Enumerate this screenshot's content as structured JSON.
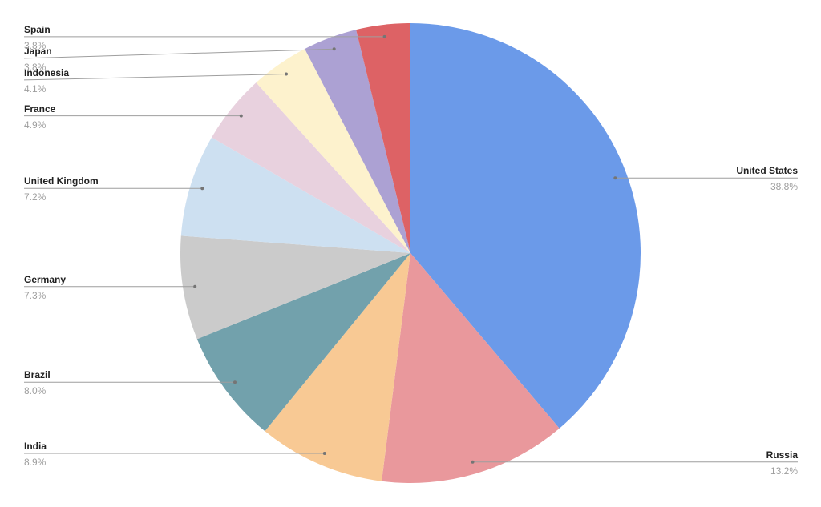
{
  "chart_data": {
    "type": "pie",
    "title": "",
    "start_at_top": true,
    "direction": "clockwise",
    "labels_position": "callout",
    "background": "#ffffff",
    "slices": [
      {
        "label": "United States",
        "pct": "38.8%",
        "value": 38.8,
        "color": "#6b9ae9"
      },
      {
        "label": "Russia",
        "pct": "13.2%",
        "value": 13.2,
        "color": "#e9989c"
      },
      {
        "label": "India",
        "pct": "8.9%",
        "value": 8.9,
        "color": "#f8c994"
      },
      {
        "label": "Brazil",
        "pct": "8.0%",
        "value": 8.0,
        "color": "#72a1ac"
      },
      {
        "label": "Germany",
        "pct": "7.3%",
        "value": 7.3,
        "color": "#cbcbcb"
      },
      {
        "label": "United Kingdom",
        "pct": "7.2%",
        "value": 7.2,
        "color": "#cde0f1"
      },
      {
        "label": "France",
        "pct": "4.9%",
        "value": 4.9,
        "color": "#e8d1de"
      },
      {
        "label": "Indonesia",
        "pct": "4.1%",
        "value": 4.1,
        "color": "#fdf2cd"
      },
      {
        "label": "Japan",
        "pct": "3.8%",
        "value": 3.8,
        "color": "#aca1d3"
      },
      {
        "label": "Spain",
        "pct": "3.8%",
        "value": 3.8,
        "color": "#dd6265"
      }
    ],
    "label_style": {
      "name_color": "#212121",
      "pct_color": "#9e9e9e",
      "line_color": "#9e9e9e",
      "dot_color": "#757575"
    }
  }
}
